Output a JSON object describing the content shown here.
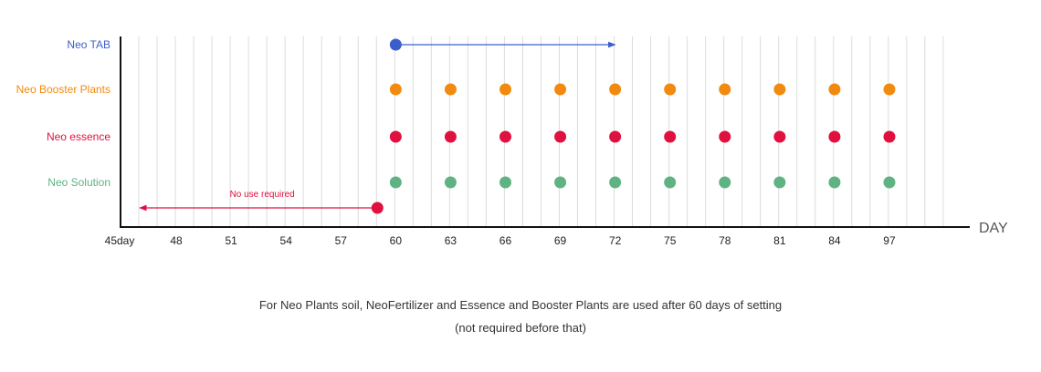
{
  "chart_data": {
    "type": "scatter",
    "x_axis": {
      "label": "DAY",
      "ticks": [
        "45day",
        "48",
        "51",
        "54",
        "57",
        "60",
        "63",
        "66",
        "69",
        "72",
        "75",
        "78",
        "81",
        "84",
        "97"
      ]
    },
    "grid": "vertical",
    "series": [
      {
        "name": "Neo TAB",
        "color": "#3a5fcd",
        "points": [
          "60"
        ],
        "arrow": {
          "from": "60",
          "to": "72",
          "direction": "right",
          "label": ""
        }
      },
      {
        "name": "Neo Booster Plants",
        "color": "#f28a0f",
        "points": [
          "60",
          "63",
          "66",
          "69",
          "72",
          "75",
          "78",
          "81",
          "84",
          "97"
        ]
      },
      {
        "name": "Neo essence",
        "color": "#e0103f",
        "points": [
          "60",
          "63",
          "66",
          "69",
          "72",
          "75",
          "78",
          "81",
          "84",
          "97"
        ]
      },
      {
        "name": "Neo Solution",
        "color": "#5fb383",
        "points": [
          "60",
          "63",
          "66",
          "69",
          "72",
          "75",
          "78",
          "81",
          "84",
          "97"
        ]
      },
      {
        "name": "",
        "color": "#e0103f",
        "points": [
          "59"
        ],
        "arrow": {
          "from": "59",
          "to": "46",
          "direction": "left",
          "label": "No use required"
        }
      }
    ]
  },
  "caption": {
    "line1": "For Neo Plants soil, NeoFertilizer and Essence and Booster Plants are used after 60 days of setting",
    "line2": "(not required before that)"
  }
}
